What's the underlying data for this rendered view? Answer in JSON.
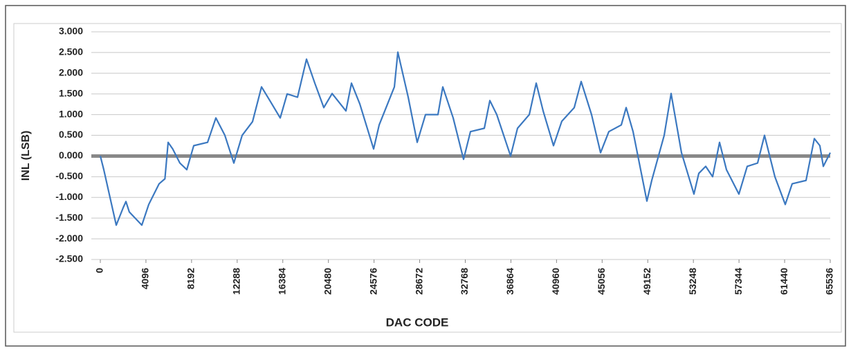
{
  "chart_data": {
    "type": "line",
    "x_label": "DAC CODE",
    "y_label": "INL (LSB)",
    "x": [
      0,
      311,
      1429,
      2050,
      2300,
      2600,
      3727,
      4348,
      5280,
      5800,
      6088,
      6500,
      7144,
      7765,
      8386,
      9628,
      10374,
      11182,
      11989,
      12735,
      13666,
      14474,
      15220,
      16152,
      16773,
      17705,
      18512,
      19258,
      20066,
      20811,
      22054,
      22550,
      23295,
      24538,
      25035,
      26402,
      26712,
      27644,
      28450,
      29196,
      30314,
      30749,
      31681,
      32613,
      33235,
      34477,
      34974,
      35595,
      36837,
      37458,
      38514,
      39136,
      39757,
      40689,
      41434,
      42552,
      43173,
      44105,
      44913,
      45658,
      46776,
      47211,
      47832,
      49074,
      49509,
      50627,
      51248,
      52180,
      53298,
      53733,
      54354,
      54976,
      55597,
      56218,
      57336,
      58081,
      59013,
      59634,
      60566,
      61498,
      62120,
      63362,
      64107,
      64604,
      64914,
      65536
    ],
    "series": [
      {
        "name": "INL",
        "color": "#3b78c0",
        "values": [
          0,
          -0.33,
          -1.67,
          -1.25,
          -1.1,
          -1.35,
          -1.67,
          -1.17,
          -0.67,
          -0.55,
          0.33,
          0.17,
          -0.17,
          -0.33,
          0.25,
          0.33,
          0.92,
          0.5,
          -0.17,
          0.5,
          0.83,
          1.67,
          1.34,
          0.92,
          1.5,
          1.42,
          2.34,
          1.76,
          1.17,
          1.51,
          1.09,
          1.76,
          1.26,
          0.17,
          0.75,
          1.67,
          2.51,
          1.42,
          0.33,
          1.0,
          1.0,
          1.67,
          0.92,
          -0.08,
          0.59,
          0.67,
          1.34,
          1.0,
          0.0,
          0.67,
          1.0,
          1.76,
          1.09,
          0.25,
          0.84,
          1.17,
          1.8,
          1.0,
          0.08,
          0.59,
          0.75,
          1.17,
          0.59,
          -1.09,
          -0.59,
          0.5,
          1.51,
          0.08,
          -0.92,
          -0.42,
          -0.25,
          -0.5,
          0.33,
          -0.33,
          -0.92,
          -0.25,
          -0.17,
          0.5,
          -0.5,
          -1.17,
          -0.67,
          -0.59,
          0.42,
          0.25,
          -0.25,
          0.08
        ]
      }
    ],
    "xlim": [
      0,
      65536
    ],
    "xticks": [
      0,
      4096,
      8192,
      12288,
      16384,
      20480,
      24576,
      28672,
      32768,
      36864,
      40960,
      45056,
      49152,
      53248,
      57344,
      61440,
      65536
    ],
    "ylim": [
      -2.5,
      3.0
    ],
    "yticks": [
      {
        "value": -2.5,
        "label": "-2.500"
      },
      {
        "value": -2.0,
        "label": "-2.000"
      },
      {
        "value": -1.5,
        "label": "-1.500"
      },
      {
        "value": -1.0,
        "label": "-1.000"
      },
      {
        "value": -0.5,
        "label": "-0.500"
      },
      {
        "value": 0,
        "label": "0.000"
      },
      {
        "value": 0.5,
        "label": "0.500"
      },
      {
        "value": 1.0,
        "label": "1.000"
      },
      {
        "value": 1.5,
        "label": "1.500"
      },
      {
        "value": 2.0,
        "label": "2.000"
      },
      {
        "value": 2.5,
        "label": "2.500"
      },
      {
        "value": 3.0,
        "label": "3.000"
      }
    ],
    "grid": true
  }
}
